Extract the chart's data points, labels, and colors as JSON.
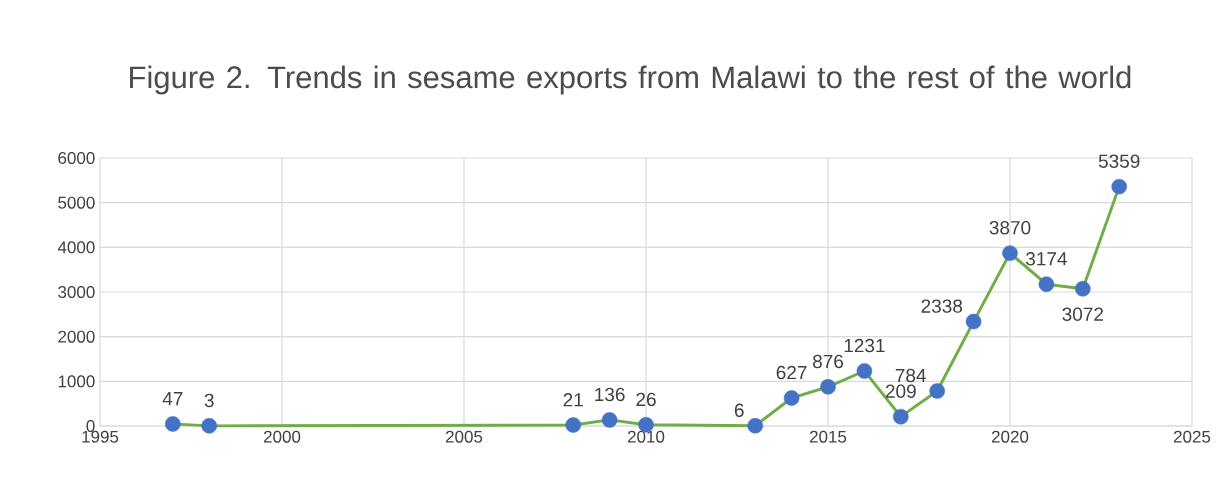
{
  "chart_data": {
    "type": "line",
    "title": "Figure 2. Trends in sesame exports from Malawi to the rest of the world",
    "x": [
      1997,
      1998,
      2008,
      2009,
      2010,
      2013,
      2014,
      2015,
      2016,
      2017,
      2018,
      2019,
      2020,
      2021,
      2022,
      2023
    ],
    "series": [
      {
        "color": "#70ad47",
        "colors": [
          "#4472c4",
          "#4472c4",
          "#4472c4",
          "#4472c4",
          "#4472c4",
          "#4472c4",
          "#4472c4",
          "#4472c4",
          "#4472c4",
          "#4472c4",
          "#4472c4",
          "#4472c4",
          "#4472c4",
          "#4472c4",
          "#4472c4",
          "#4472c4"
        ],
        "values": [
          47,
          3,
          21,
          136,
          26,
          6,
          627,
          876,
          1231,
          209,
          784,
          2338,
          3870,
          3174,
          3072,
          5359
        ]
      }
    ],
    "xlim": [
      1995,
      2025
    ],
    "xticks": [
      1995,
      2000,
      2005,
      2010,
      2015,
      2020,
      2025
    ],
    "ylim": [
      0,
      6000
    ],
    "yticks": [
      0,
      1000,
      2000,
      3000,
      4000,
      5000,
      6000
    ],
    "grid": true,
    "marker": "circle",
    "data_labels": true,
    "line_style": "solid"
  }
}
